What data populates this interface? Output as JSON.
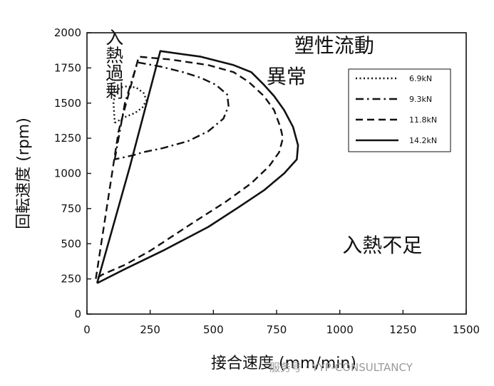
{
  "chart_data": {
    "type": "line",
    "xlabel": "接合速度 (mm/min)",
    "ylabel": "回転速度 (rpm)",
    "xlim": [
      0,
      1500
    ],
    "ylim": [
      0,
      2000
    ],
    "x_ticks": [
      0,
      250,
      500,
      750,
      1000,
      1250,
      1500
    ],
    "y_ticks": [
      0,
      250,
      500,
      750,
      1000,
      1250,
      1500,
      1750,
      2000
    ],
    "grid": false,
    "legend_position": "top-right",
    "annotations": [
      {
        "text": "入熱過剰",
        "x": 105,
        "y": 1780,
        "orientation": "vertical"
      },
      {
        "text": "塑性流動",
        "x": 820,
        "y": 1860,
        "orientation": "horizontal"
      },
      {
        "text": "異常",
        "x": 710,
        "y": 1640,
        "orientation": "horizontal"
      },
      {
        "text": "入熱不足",
        "x": 1010,
        "y": 440,
        "orientation": "horizontal"
      }
    ],
    "series": [
      {
        "name": "6.9kN",
        "style": "dotted",
        "points": [
          [
            110,
            1360
          ],
          [
            150,
            1400
          ],
          [
            190,
            1430
          ],
          [
            220,
            1470
          ],
          [
            235,
            1520
          ],
          [
            225,
            1570
          ],
          [
            195,
            1610
          ],
          [
            160,
            1620
          ],
          [
            130,
            1610
          ],
          [
            110,
            1560
          ],
          [
            105,
            1500
          ],
          [
            110,
            1360
          ]
        ]
      },
      {
        "name": "9.3kN",
        "style": "dashdot",
        "points": [
          [
            110,
            1100
          ],
          [
            150,
            1500
          ],
          [
            200,
            1790
          ],
          [
            290,
            1760
          ],
          [
            380,
            1720
          ],
          [
            450,
            1680
          ],
          [
            510,
            1630
          ],
          [
            555,
            1560
          ],
          [
            560,
            1480
          ],
          [
            540,
            1390
          ],
          [
            480,
            1300
          ],
          [
            400,
            1230
          ],
          [
            300,
            1180
          ],
          [
            220,
            1150
          ],
          [
            185,
            1130
          ],
          [
            110,
            1100
          ]
        ]
      },
      {
        "name": "11.8kN",
        "style": "dashed",
        "points": [
          [
            35,
            250
          ],
          [
            125,
            1300
          ],
          [
            205,
            1830
          ],
          [
            330,
            1810
          ],
          [
            480,
            1770
          ],
          [
            580,
            1720
          ],
          [
            640,
            1650
          ],
          [
            700,
            1550
          ],
          [
            740,
            1450
          ],
          [
            765,
            1330
          ],
          [
            775,
            1250
          ],
          [
            760,
            1150
          ],
          [
            720,
            1050
          ],
          [
            650,
            930
          ],
          [
            550,
            800
          ],
          [
            420,
            650
          ],
          [
            250,
            450
          ],
          [
            150,
            350
          ],
          [
            60,
            280
          ],
          [
            35,
            250
          ]
        ]
      },
      {
        "name": "14.2kN",
        "style": "solid",
        "points": [
          [
            40,
            220
          ],
          [
            170,
            1050
          ],
          [
            290,
            1870
          ],
          [
            450,
            1830
          ],
          [
            580,
            1770
          ],
          [
            650,
            1720
          ],
          [
            700,
            1630
          ],
          [
            740,
            1550
          ],
          [
            780,
            1450
          ],
          [
            815,
            1330
          ],
          [
            835,
            1200
          ],
          [
            830,
            1100
          ],
          [
            780,
            1000
          ],
          [
            700,
            880
          ],
          [
            600,
            760
          ],
          [
            480,
            620
          ],
          [
            300,
            450
          ],
          [
            150,
            320
          ],
          [
            40,
            220
          ]
        ]
      }
    ]
  },
  "watermark": {
    "text": "服务号 · YYP-CONSULTANCY"
  }
}
